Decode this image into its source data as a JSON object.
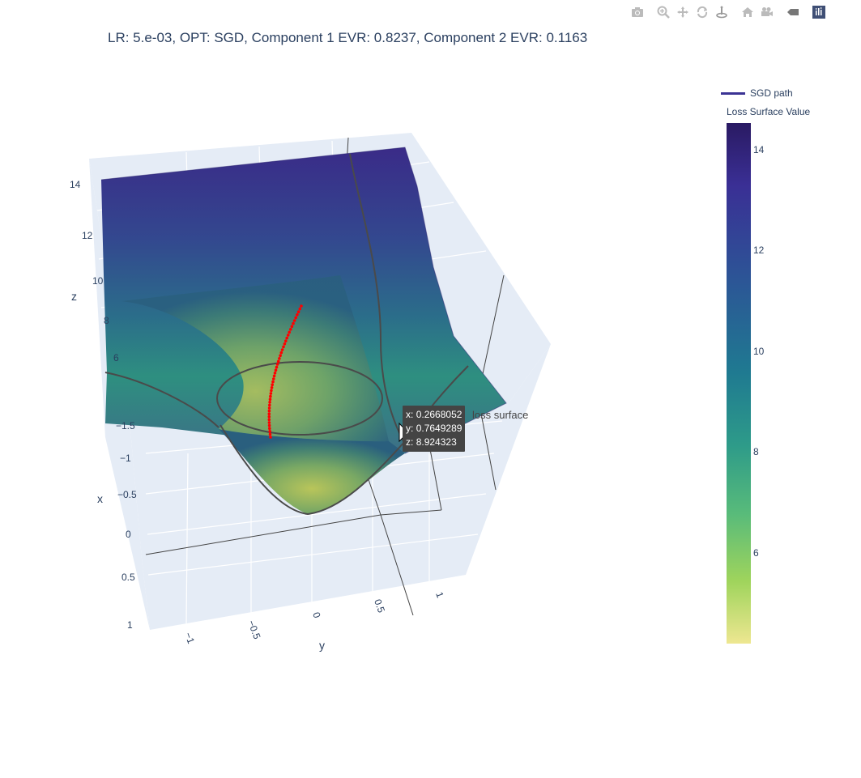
{
  "title": "LR: 5.e-03, OPT: SGD, Component 1 EVR: 0.8237, Component 2 EVR: 0.1163",
  "modebar": [
    {
      "name": "camera-icon"
    },
    {
      "name": "zoom-icon"
    },
    {
      "name": "pan-icon"
    },
    {
      "name": "orbit-rotation-icon"
    },
    {
      "name": "turntable-rotation-icon"
    },
    {
      "name": "reset-camera-icon"
    },
    {
      "name": "last-save-camera-icon"
    },
    {
      "name": "hover-toggle-icon"
    },
    {
      "name": "plotly-logo-icon"
    }
  ],
  "colors": {
    "surface_hi": "#2a1a63",
    "surface_lo": "#eee791",
    "path": "#ff0000",
    "legend_line": "#3b3394"
  },
  "legend": {
    "label": "SGD path"
  },
  "colorbar": {
    "title": "Loss Surface Value",
    "ticks": [
      "14",
      "12",
      "10",
      "8",
      "6"
    ]
  },
  "scene": {
    "z_label": "z",
    "x_label": "x",
    "y_label": "y",
    "z_ticks": [
      "14",
      "12",
      "10",
      "8",
      "6"
    ],
    "x_ticks": [
      "−1.5",
      "−1",
      "−0.5",
      "0",
      "0.5",
      "1"
    ],
    "y_ticks": [
      "−1",
      "−0.5",
      "0",
      "0.5",
      "1"
    ]
  },
  "hover": {
    "x_label": "x:",
    "x_value": "0.2668052",
    "y_label": "y:",
    "y_value": "0.7649289",
    "z_label": "z:",
    "z_value": "8.924323",
    "trace_name": "loss surface"
  }
}
